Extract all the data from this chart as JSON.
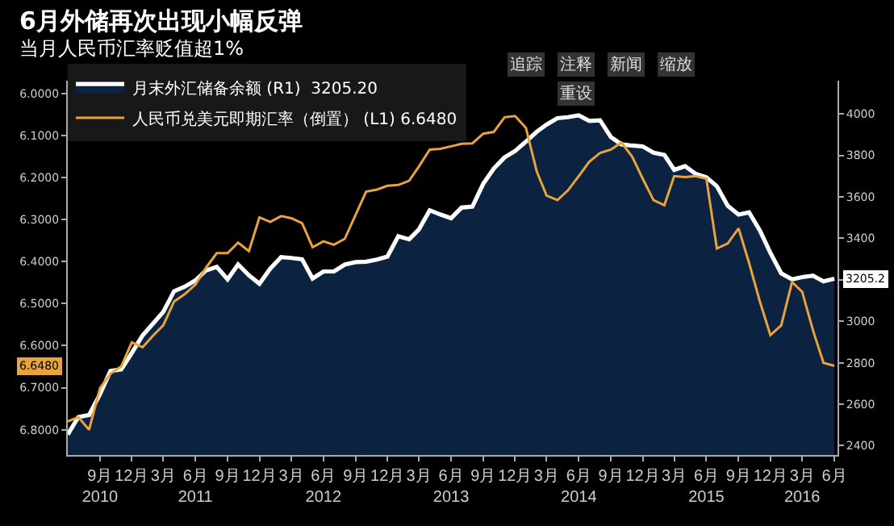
{
  "chart_data": {
    "type": "line",
    "title": "6月外储再次出现小幅反弹",
    "subtitle": "当月人民币汇率贬值超1%",
    "x": [
      "2010-06",
      "2010-07",
      "2010-08",
      "2010-09",
      "2010-10",
      "2010-11",
      "2010-12",
      "2011-01",
      "2011-02",
      "2011-03",
      "2011-04",
      "2011-05",
      "2011-06",
      "2011-07",
      "2011-08",
      "2011-09",
      "2011-10",
      "2011-11",
      "2011-12",
      "2012-01",
      "2012-02",
      "2012-03",
      "2012-04",
      "2012-05",
      "2012-06",
      "2012-07",
      "2012-08",
      "2012-09",
      "2012-10",
      "2012-11",
      "2012-12",
      "2013-01",
      "2013-02",
      "2013-03",
      "2013-04",
      "2013-05",
      "2013-06",
      "2013-07",
      "2013-08",
      "2013-09",
      "2013-10",
      "2013-11",
      "2013-12",
      "2014-01",
      "2014-02",
      "2014-03",
      "2014-04",
      "2014-05",
      "2014-06",
      "2014-07",
      "2014-08",
      "2014-09",
      "2014-10",
      "2014-11",
      "2014-12",
      "2015-01",
      "2015-02",
      "2015-03",
      "2015-04",
      "2015-05",
      "2015-06",
      "2015-07",
      "2015-08",
      "2015-09",
      "2015-10",
      "2015-11",
      "2015-12",
      "2016-01",
      "2016-02",
      "2016-03",
      "2016-04",
      "2016-05",
      "2016-06"
    ],
    "series": [
      {
        "name": "月末外汇储备余额 (R1)  3205.20",
        "type": "area",
        "axis": "y2",
        "color": "#ffffff",
        "values": [
          2454,
          2538,
          2548,
          2648,
          2760,
          2768,
          2847,
          2932,
          2991,
          3045,
          3145,
          3166,
          3197,
          3245,
          3262,
          3202,
          3274,
          3221,
          3181,
          3254,
          3309,
          3305,
          3299,
          3206,
          3240,
          3240,
          3273,
          3285,
          3287,
          3297,
          3312,
          3410,
          3395,
          3443,
          3535,
          3515,
          3497,
          3548,
          3553,
          3663,
          3736,
          3790,
          3821,
          3866,
          3914,
          3948,
          3979,
          3984,
          3993,
          3966,
          3969,
          3888,
          3853,
          3847,
          3843,
          3813,
          3802,
          3730,
          3748,
          3711,
          3694,
          3651,
          3557,
          3514,
          3525,
          3438,
          3330,
          3231,
          3202,
          3213,
          3220,
          3192,
          3205
        ]
      },
      {
        "name": "人民币兑美元即期汇率（倒置） (L1) 6.6480",
        "axis": "y",
        "color": "#e8a33d",
        "values": [
          6.78,
          6.77,
          6.8,
          6.701,
          6.667,
          6.649,
          6.592,
          6.604,
          6.575,
          6.552,
          6.495,
          6.478,
          6.455,
          6.415,
          6.38,
          6.38,
          6.355,
          6.375,
          6.295,
          6.306,
          6.292,
          6.297,
          6.309,
          6.366,
          6.352,
          6.36,
          6.346,
          6.289,
          6.234,
          6.229,
          6.22,
          6.218,
          6.208,
          6.174,
          6.134,
          6.132,
          6.126,
          6.12,
          6.119,
          6.096,
          6.092,
          6.057,
          6.054,
          6.082,
          6.186,
          6.243,
          6.254,
          6.231,
          6.197,
          6.163,
          6.142,
          6.134,
          6.117,
          6.151,
          6.203,
          6.254,
          6.266,
          6.197,
          6.199,
          6.197,
          6.203,
          6.369,
          6.357,
          6.321,
          6.403,
          6.495,
          6.575,
          6.552,
          6.449,
          6.472,
          6.564,
          6.641,
          6.648
        ]
      }
    ],
    "ylim": [
      6.86,
      5.97
    ],
    "yticks": [
      {
        "value": 6.0,
        "label": "6.0000"
      },
      {
        "value": 6.1,
        "label": "6.1000"
      },
      {
        "value": 6.2,
        "label": "6.2000"
      },
      {
        "value": 6.3,
        "label": "6.3000"
      },
      {
        "value": 6.4,
        "label": "6.4000"
      },
      {
        "value": 6.5,
        "label": "6.5000"
      },
      {
        "value": 6.6,
        "label": "6.6000"
      },
      {
        "value": 6.7,
        "label": "6.7000"
      },
      {
        "value": 6.8,
        "label": "6.8000"
      }
    ],
    "y2lim": [
      2355,
      4160
    ],
    "y2ticks": [
      2400,
      2600,
      2800,
      3000,
      {
        "value": 3200,
        "label": null
      },
      3400,
      3600,
      3800,
      4000
    ],
    "xlim": [
      "2010-06",
      "2016-06-10"
    ],
    "xticks": [
      {
        "value": "2010-09",
        "label": "9月\n2010"
      },
      {
        "value": "2010-12",
        "label": "12月"
      },
      {
        "value": "2011-03",
        "label": "3月"
      },
      {
        "value": "2011-06",
        "label": "6月\n2011"
      },
      {
        "value": "2011-09",
        "label": "9月"
      },
      {
        "value": "2011-12",
        "label": "12月"
      },
      {
        "value": "2012-03",
        "label": "3月"
      },
      {
        "value": "2012-06",
        "label": "6月\n2012"
      },
      {
        "value": "2012-09",
        "label": "9月"
      },
      {
        "value": "2012-12",
        "label": "12月"
      },
      {
        "value": "2013-03",
        "label": "3月"
      },
      {
        "value": "2013-06",
        "label": "6月\n2013"
      },
      {
        "value": "2013-09",
        "label": "9月"
      },
      {
        "value": "2013-12",
        "label": "12月"
      },
      {
        "value": "2014-03",
        "label": "3月"
      },
      {
        "value": "2014-06",
        "label": "6月\n2014"
      },
      {
        "value": "2014-09",
        "label": "9月"
      },
      {
        "value": "2014-12",
        "label": "12月"
      },
      {
        "value": "2015-03",
        "label": "3月"
      },
      {
        "value": "2015-06",
        "label": "6月\n2015"
      },
      {
        "value": "2015-09",
        "label": "9月"
      },
      {
        "value": "2015-12",
        "label": "12月"
      },
      {
        "value": "2016-03",
        "label": "3月\n2016"
      },
      {
        "value": "2016-06",
        "label": "6月"
      }
    ],
    "annotations": [
      "追踪",
      "注释",
      "新闻",
      "缩放",
      "重设",
      "3205.2",
      "6.6480"
    ],
    "legend": "top left",
    "grid": false,
    "marker": "none",
    "line_style": "solid"
  }
}
